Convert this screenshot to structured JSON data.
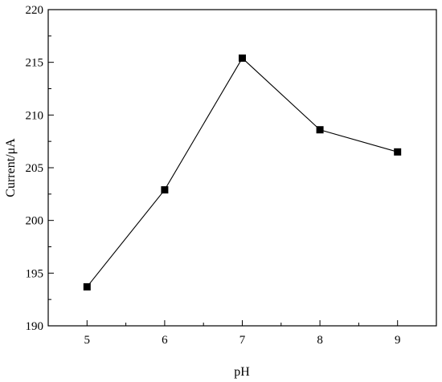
{
  "chart_data": {
    "type": "line",
    "title": "",
    "xlabel": "pH",
    "ylabel": "Current/μA",
    "x": [
      5,
      6,
      7,
      8,
      9
    ],
    "xticks": [
      "5",
      "6",
      "7",
      "8",
      "9"
    ],
    "xlim": [
      4.5,
      9.5
    ],
    "ylim": [
      190,
      220
    ],
    "yticks": [
      "190",
      "195",
      "200",
      "205",
      "210",
      "215",
      "220"
    ],
    "series": [
      {
        "values": [
          193.7,
          202.9,
          215.4,
          208.6,
          206.5
        ]
      }
    ],
    "marker": "square",
    "grid": false,
    "legend": "none",
    "colors": {
      "line": "#000000",
      "marker": "#000000",
      "axis": "#000000"
    }
  }
}
